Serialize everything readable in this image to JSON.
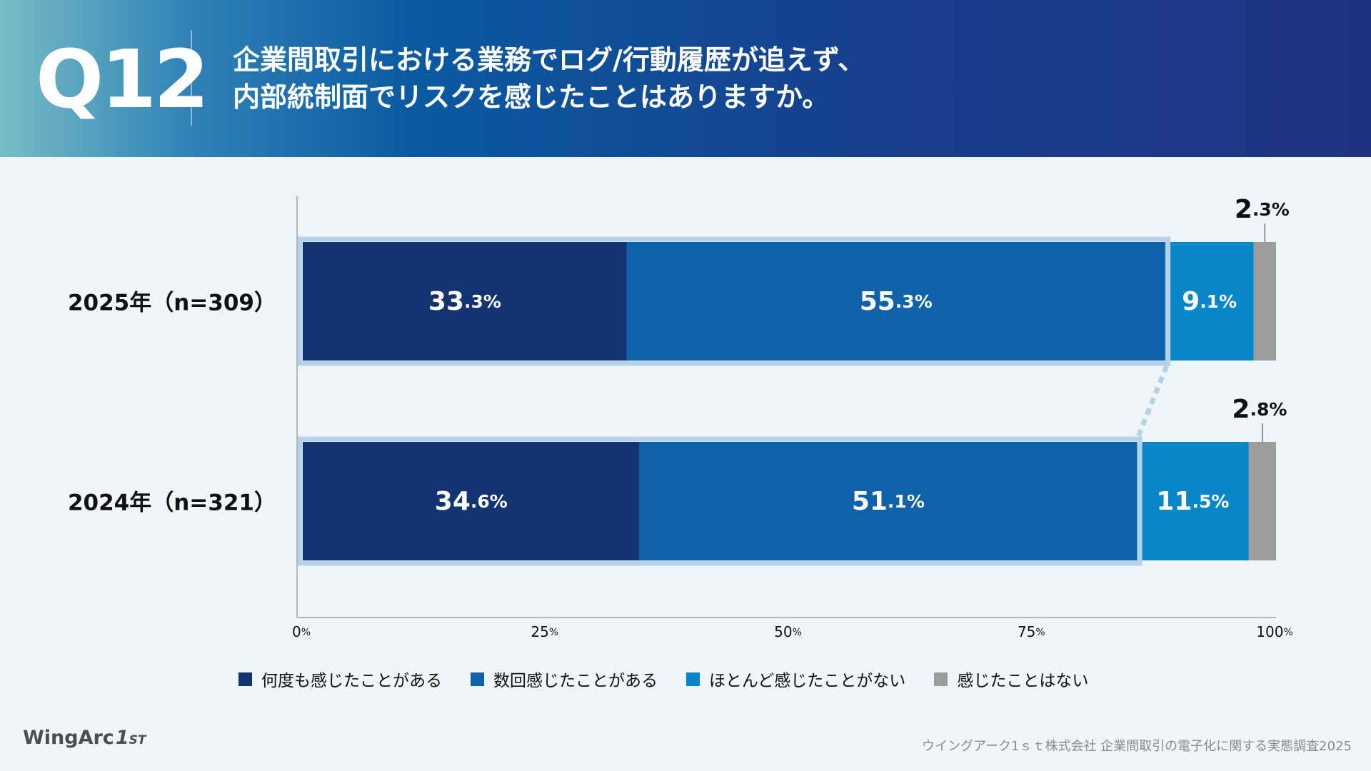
{
  "header": {
    "question_number": "Q12",
    "title_line1": "企業間取引における業務でログ/行動履歴が追えず、",
    "title_line2": "内部統制面でリスクを感じたことはありますか。"
  },
  "chart_data": {
    "type": "stacked-bar-horizontal",
    "categories": [
      "2025年（n=309）",
      "2024年（n=321）"
    ],
    "series": [
      {
        "name": "何度も感じたことがある",
        "color": "#133470",
        "values": [
          33.3,
          34.6
        ]
      },
      {
        "name": "数回感じたことがある",
        "color": "#0f61aa",
        "values": [
          55.3,
          51.1
        ]
      },
      {
        "name": "ほとんど感じたことがない",
        "color": "#0787c9",
        "values": [
          9.1,
          11.5
        ]
      },
      {
        "name": "感じたことはない",
        "color": "#9c9c9c",
        "values": [
          2.3,
          2.8
        ]
      }
    ],
    "x_ticks": [
      "0%",
      "25%",
      "50%",
      "75%",
      "100%"
    ],
    "xlim": [
      0,
      100
    ],
    "unit": "%",
    "highlight": "何度も感じたことがある + 数回感じたことがある (outlined, connected by dotted line)"
  },
  "legend_placement": "bottom",
  "colors": {
    "highlight_outline": "#b6d2ea",
    "axis": "#b5b5b5"
  },
  "footer": {
    "logo_text": "WingArc",
    "logo_mark": "1",
    "logo_suffix": "ST",
    "source": "ウイングアーク1ｓｔ株式会社 企業間取引の電子化に関する実態調査2025"
  }
}
